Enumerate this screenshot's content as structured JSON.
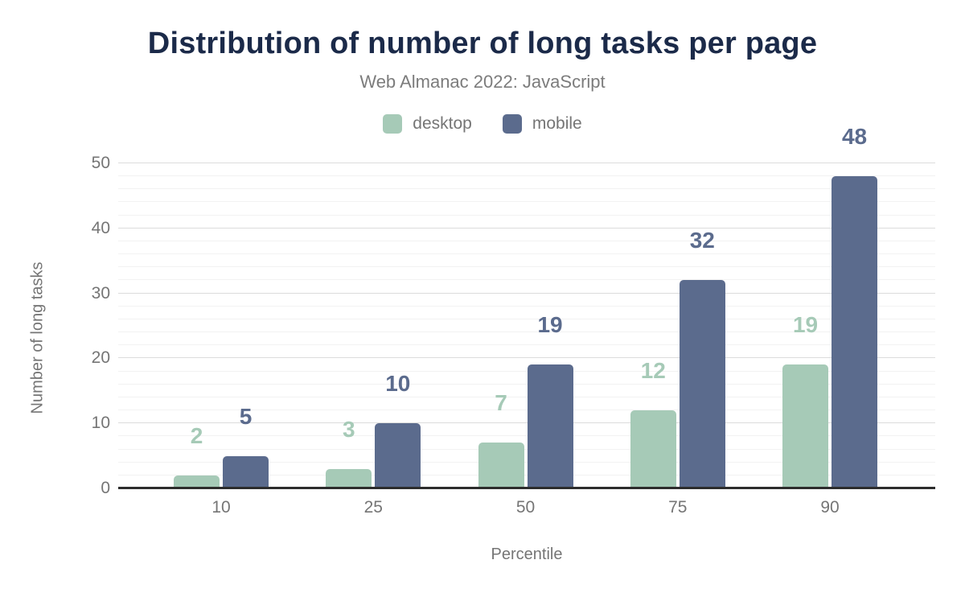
{
  "chart_data": {
    "type": "bar",
    "title": "Distribution of number of long tasks per page",
    "subtitle": "Web Almanac 2022: JavaScript",
    "categories": [
      "10",
      "25",
      "50",
      "75",
      "90"
    ],
    "series": [
      {
        "name": "desktop",
        "color": "#a6cab7",
        "values": [
          2,
          3,
          7,
          12,
          19
        ]
      },
      {
        "name": "mobile",
        "color": "#5b6b8d",
        "values": [
          5,
          10,
          19,
          32,
          48
        ]
      }
    ],
    "xlabel": "Percentile",
    "ylabel": "Number of long tasks",
    "ylim": [
      0,
      50
    ],
    "y_major_step": 10,
    "y_minor_step": 2,
    "y_tick_labels": [
      "0",
      "10",
      "20",
      "30",
      "40",
      "50"
    ],
    "grid": true,
    "legend_position": "top",
    "value_labels": true
  },
  "colors": {
    "title": "#1b2a49",
    "subtitle": "#7c7c7c",
    "axis_text": "#757575",
    "axis_line": "#2d2d2d",
    "grid_major": "#dcdcdc",
    "grid_minor": "#f2f2f2",
    "background": "#ffffff"
  }
}
